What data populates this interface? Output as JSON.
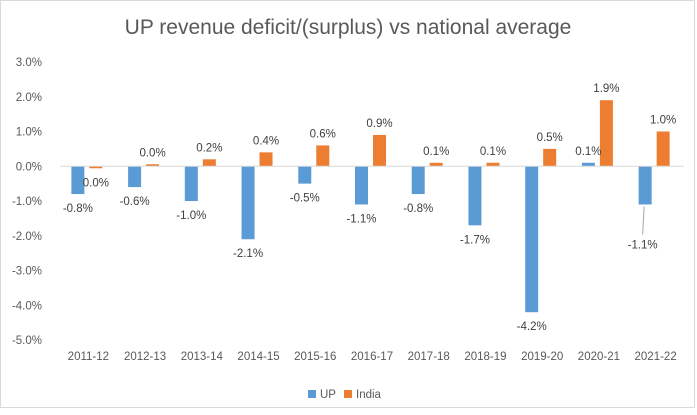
{
  "chart_data": {
    "type": "bar",
    "title": "UP revenue deficit/(surplus) vs national average",
    "xlabel": "",
    "ylabel": "",
    "categories": [
      "2011-12",
      "2012-13",
      "2013-14",
      "2014-15",
      "2015-16",
      "2016-17",
      "2017-18",
      "2018-19",
      "2019-20",
      "2020-21",
      "2021-22"
    ],
    "series": [
      {
        "name": "UP",
        "color": "#5b9bd5",
        "values": [
          -0.8,
          -0.6,
          -1.0,
          -2.1,
          -0.5,
          -1.1,
          -0.8,
          -1.7,
          -4.2,
          0.1,
          -1.1
        ],
        "labels": [
          "-0.8%",
          "-0.6%",
          "-1.0%",
          "-2.1%",
          "-0.5%",
          "-1.1%",
          "-0.8%",
          "-1.7%",
          "-4.2%",
          "0.1%",
          "-1.1%"
        ]
      },
      {
        "name": "India",
        "color": "#ed7d31",
        "values": [
          -0.04,
          0.04,
          0.2,
          0.4,
          0.6,
          0.9,
          0.1,
          0.1,
          0.5,
          1.9,
          1.0
        ],
        "labels": [
          "0.0%",
          "0.0%",
          "0.2%",
          "0.4%",
          "0.6%",
          "0.9%",
          "0.1%",
          "0.1%",
          "0.5%",
          "1.9%",
          "1.0%"
        ]
      }
    ],
    "yticks": [
      "3.0%",
      "2.0%",
      "1.0%",
      "0.0%",
      "-1.0%",
      "-2.0%",
      "-3.0%",
      "-4.0%",
      "-5.0%"
    ],
    "ytick_values": [
      3,
      2,
      1,
      0,
      -1,
      -2,
      -3,
      -4,
      -5
    ],
    "ylim": [
      -5,
      3
    ],
    "grid": false,
    "legend": {
      "position": "bottom",
      "entries": [
        "UP",
        "India"
      ]
    }
  }
}
